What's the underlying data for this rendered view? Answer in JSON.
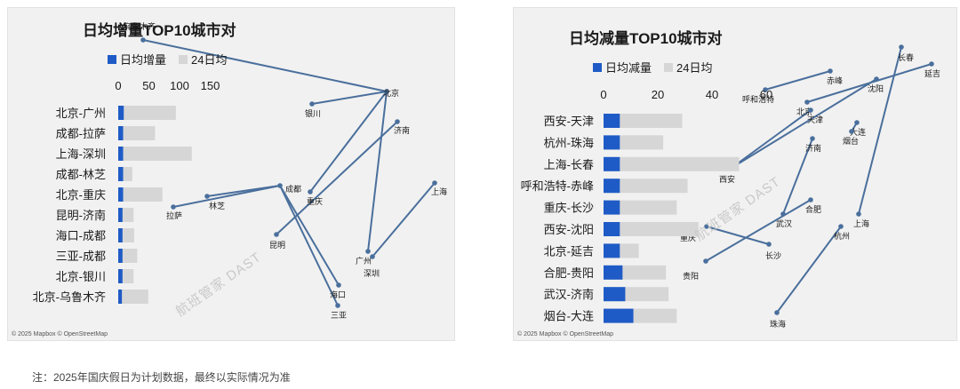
{
  "colors": {
    "increase": "#1f5bc6",
    "avg": "#d6d6d6",
    "route": "#4a6f9c",
    "map_bg": "#f1f1f1",
    "text": "#1a1a1a"
  },
  "footnote": "注：2025年国庆假日为计划数据，最终以实际情况为准",
  "map_attribution": "© 2025 Mapbox © OpenStreetMap",
  "watermark": "航班管家 DAST",
  "chart_data": [
    {
      "type": "bar",
      "title": "日均增量TOP10城市对",
      "series": [
        {
          "name": "日均增量",
          "values": [
            9,
            8,
            8,
            8,
            8,
            7,
            7,
            7,
            7,
            6
          ]
        },
        {
          "name": "24日均",
          "values": [
            94,
            60,
            120,
            23,
            72,
            25,
            26,
            31,
            25,
            49
          ]
        }
      ],
      "categories": [
        "北京-广州",
        "成都-拉萨",
        "上海-深圳",
        "成都-林芝",
        "北京-重庆",
        "昆明-济南",
        "海口-成都",
        "三亚-成都",
        "北京-银川",
        "北京-乌鲁木齐"
      ],
      "x_ticks": [
        "0",
        "50",
        "100",
        "150"
      ],
      "xlim": [
        0,
        175
      ],
      "map_labels": [
        "乌鲁木齐",
        "北京",
        "银川",
        "济南",
        "成都",
        "重庆",
        "拉萨",
        "林芝",
        "上海",
        "昆明",
        "广州",
        "深圳",
        "海口",
        "三亚"
      ],
      "routes": [
        [
          "北京",
          "广州"
        ],
        [
          "成都",
          "拉萨"
        ],
        [
          "上海",
          "深圳"
        ],
        [
          "成都",
          "林芝"
        ],
        [
          "北京",
          "重庆"
        ],
        [
          "昆明",
          "济南"
        ],
        [
          "海口",
          "成都"
        ],
        [
          "三亚",
          "成都"
        ],
        [
          "北京",
          "银川"
        ],
        [
          "北京",
          "乌鲁木齐"
        ]
      ]
    },
    {
      "type": "bar",
      "title": "日均减量TOP10城市对",
      "series": [
        {
          "name": "日均减量",
          "values": [
            6,
            6,
            6,
            6,
            6,
            6,
            6,
            7,
            8,
            11
          ]
        },
        {
          "name": "24日均",
          "values": [
            29,
            22,
            50,
            31,
            27,
            35,
            13,
            23,
            24,
            27
          ]
        }
      ],
      "categories": [
        "西安-天津",
        "杭州-珠海",
        "上海-长春",
        "呼和浩特-赤峰",
        "重庆-长沙",
        "西安-沈阳",
        "北京-延吉",
        "合肥-贵阳",
        "武汉-济南",
        "烟台-大连"
      ],
      "x_ticks": [
        "0",
        "20",
        "40",
        "60"
      ],
      "xlim": [
        0,
        60
      ],
      "map_labels": [
        "长春",
        "延吉",
        "赤峰",
        "呼和浩特",
        "沈阳",
        "北京",
        "天津",
        "大连",
        "烟台",
        "济南",
        "西安",
        "合肥",
        "武汉",
        "上海",
        "杭州",
        "重庆",
        "长沙",
        "贵阳",
        "珠海"
      ],
      "routes": [
        [
          "西安",
          "天津"
        ],
        [
          "杭州",
          "珠海"
        ],
        [
          "上海",
          "长春"
        ],
        [
          "呼和浩特",
          "赤峰"
        ],
        [
          "重庆",
          "长沙"
        ],
        [
          "西安",
          "沈阳"
        ],
        [
          "北京",
          "延吉"
        ],
        [
          "合肥",
          "贵阳"
        ],
        [
          "武汉",
          "济南"
        ],
        [
          "烟台",
          "大连"
        ]
      ]
    }
  ]
}
